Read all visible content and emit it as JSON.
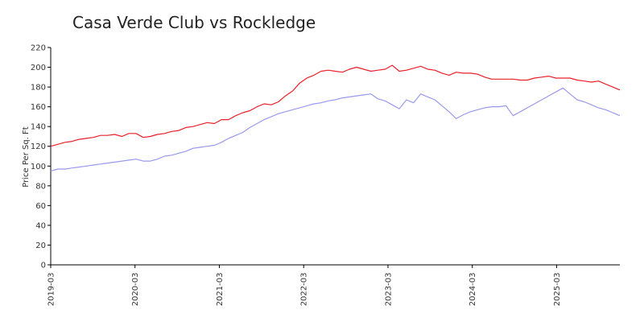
{
  "chart_data": {
    "type": "line",
    "title": "Casa Verde Club vs Rockledge",
    "xlabel": "",
    "ylabel": "Price Per Sq. Ft",
    "ylim": [
      0,
      220
    ],
    "yticks": [
      0,
      20,
      40,
      60,
      80,
      100,
      120,
      140,
      160,
      180,
      200,
      220
    ],
    "xticks": [
      "2019-03",
      "2020-03",
      "2021-03",
      "2022-03",
      "2023-03",
      "2024-03",
      "2025-03"
    ],
    "x_start": "2019-03",
    "x_end": "2025-12",
    "grid": false,
    "colors": {
      "series1": "#e8202a",
      "series2": "#9999ee",
      "axis": "#000000"
    },
    "series": [
      {
        "color": "#e8202a",
        "values": [
          120,
          122,
          124,
          125,
          127,
          128,
          129,
          131,
          131,
          132,
          130,
          133,
          133,
          129,
          130,
          132,
          133,
          135,
          136,
          139,
          140,
          142,
          144,
          143,
          147,
          147,
          151,
          154,
          156,
          160,
          163,
          162,
          165,
          171,
          176,
          184,
          189,
          192,
          196,
          197,
          196,
          195,
          198,
          200,
          198,
          196,
          197,
          198,
          202,
          196,
          197,
          199,
          201,
          198,
          197,
          194,
          192,
          195,
          194,
          194,
          193,
          190,
          188,
          188,
          188,
          188,
          187,
          187,
          189,
          190,
          191,
          189,
          189,
          189,
          187,
          186,
          185,
          186,
          183,
          180,
          177
        ]
      },
      {
        "color": "#9999ee",
        "values": [
          95,
          97,
          97,
          98,
          99,
          100,
          101,
          102,
          103,
          104,
          105,
          106,
          107,
          105,
          105,
          107,
          110,
          111,
          113,
          115,
          118,
          119,
          120,
          121,
          124,
          128,
          131,
          134,
          139,
          143,
          147,
          150,
          153,
          155,
          157,
          159,
          161,
          163,
          164,
          166,
          167,
          169,
          170,
          171,
          172,
          173,
          168,
          166,
          162,
          158,
          167,
          164,
          173,
          170,
          167,
          161,
          155,
          148,
          152,
          155,
          157,
          159,
          160,
          160,
          161,
          151,
          155,
          159,
          163,
          167,
          171,
          175,
          179,
          173,
          167,
          165,
          162,
          159,
          157,
          154,
          151
        ]
      }
    ]
  }
}
